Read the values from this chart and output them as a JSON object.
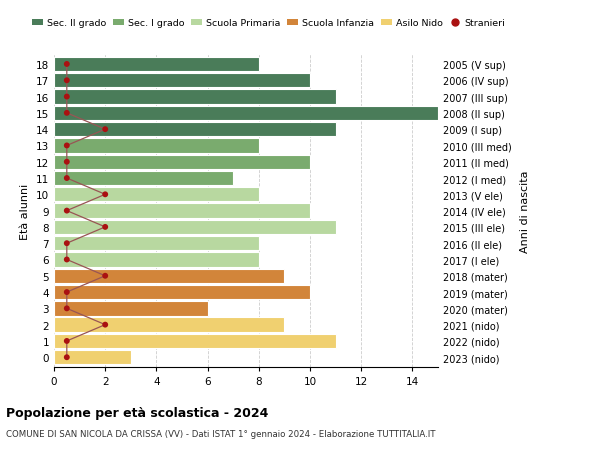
{
  "ages": [
    18,
    17,
    16,
    15,
    14,
    13,
    12,
    11,
    10,
    9,
    8,
    7,
    6,
    5,
    4,
    3,
    2,
    1,
    0
  ],
  "right_labels": [
    "2005 (V sup)",
    "2006 (IV sup)",
    "2007 (III sup)",
    "2008 (II sup)",
    "2009 (I sup)",
    "2010 (III med)",
    "2011 (II med)",
    "2012 (I med)",
    "2013 (V ele)",
    "2014 (IV ele)",
    "2015 (III ele)",
    "2016 (II ele)",
    "2017 (I ele)",
    "2018 (mater)",
    "2019 (mater)",
    "2020 (mater)",
    "2021 (nido)",
    "2022 (nido)",
    "2023 (nido)"
  ],
  "bar_values": [
    8,
    10,
    11,
    15,
    11,
    8,
    10,
    7,
    8,
    10,
    11,
    8,
    8,
    9,
    10,
    6,
    9,
    11,
    3
  ],
  "bar_colors": [
    "#4a7c59",
    "#4a7c59",
    "#4a7c59",
    "#4a7c59",
    "#4a7c59",
    "#7aab6e",
    "#7aab6e",
    "#7aab6e",
    "#b8d8a0",
    "#b8d8a0",
    "#b8d8a0",
    "#b8d8a0",
    "#b8d8a0",
    "#d2853a",
    "#d2853a",
    "#d2853a",
    "#f0d070",
    "#f0d070",
    "#f0d070"
  ],
  "stranieri_x": [
    0.5,
    0.5,
    0.5,
    0.5,
    2,
    0.5,
    0.5,
    0.5,
    2,
    0.5,
    2,
    0.5,
    0.5,
    2,
    0.5,
    0.5,
    2,
    0.5,
    0.5
  ],
  "legend_labels": [
    "Sec. II grado",
    "Sec. I grado",
    "Scuola Primaria",
    "Scuola Infanzia",
    "Asilo Nido",
    "Stranieri"
  ],
  "legend_colors": [
    "#4a7c59",
    "#7aab6e",
    "#b8d8a0",
    "#d2853a",
    "#f0d070",
    "#cc2222"
  ],
  "ylabel_left": "Età alunni",
  "ylabel_right": "Anni di nascita",
  "title": "Popolazione per età scolastica - 2024",
  "subtitle": "COMUNE DI SAN NICOLA DA CRISSA (VV) - Dati ISTAT 1° gennaio 2024 - Elaborazione TUTTITALIA.IT",
  "xlim": [
    0,
    15
  ],
  "background_color": "#ffffff",
  "grid_color": "#cccccc",
  "stranieri_color": "#aa1111",
  "stranieri_line_color": "#995555"
}
